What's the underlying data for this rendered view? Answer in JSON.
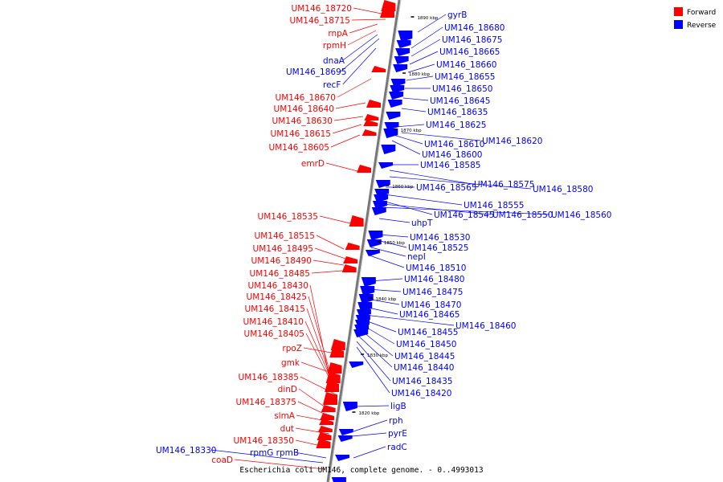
{
  "caption": "Escherichia coli UM146, complete genome. - 0..4993013",
  "legend": [
    {
      "label": "Forward",
      "color": "#ff0000"
    },
    {
      "label": "Reverse",
      "color": "#0000ff"
    }
  ],
  "ticks": [
    "1890 kbp",
    "1880 kbp",
    "1870 kbp",
    "1860 kbp",
    "1850 kbp",
    "1840 kbp",
    "1830 kbp",
    "1820 kbp"
  ],
  "forward_labels": [
    "UM146_18720",
    "UM146_18715",
    "rnpA",
    "rpmH",
    "UM146_18670",
    "UM146_18640",
    "UM146_18630",
    "UM146_18615",
    "UM146_18605",
    "emrD",
    "UM146_18535",
    "UM146_18515",
    "UM146_18495",
    "UM146_18490",
    "UM146_18485",
    "UM146_18430",
    "UM146_18425",
    "UM146_18415",
    "UM146_18410",
    "UM146_18405",
    "rpoZ",
    "gmk",
    "UM146_18385",
    "dinD",
    "UM146_18375",
    "slmA",
    "dut",
    "UM146_18350",
    "coaD"
  ],
  "reverse_labels": [
    "gyrB",
    "UM146_18680",
    "UM146_18675",
    "UM146_18665",
    "UM146_18660",
    "UM146_18655",
    "UM146_18650",
    "UM146_18645",
    "UM146_18635",
    "UM146_18625",
    "UM146_18620",
    "UM146_18610",
    "UM146_18600",
    "UM146_18585",
    "UM146_18575",
    "UM146_18580",
    "UM146_18565",
    "UM146_18555",
    "UM146_18545",
    "UM146_18550",
    "UM146_18560",
    "uhpT",
    "UM146_18530",
    "UM146_18525",
    "nepI",
    "UM146_18510",
    "UM146_18480",
    "UM146_18475",
    "UM146_18470",
    "UM146_18465",
    "UM146_18460",
    "UM146_18455",
    "UM146_18450",
    "UM146_18445",
    "UM146_18440",
    "UM146_18435",
    "UM146_18420",
    "ligB",
    "rph",
    "pyrE",
    "radC",
    "dnaA",
    "UM146_18695",
    "recF",
    "rpmG rpmB",
    "UM146_18330"
  ]
}
